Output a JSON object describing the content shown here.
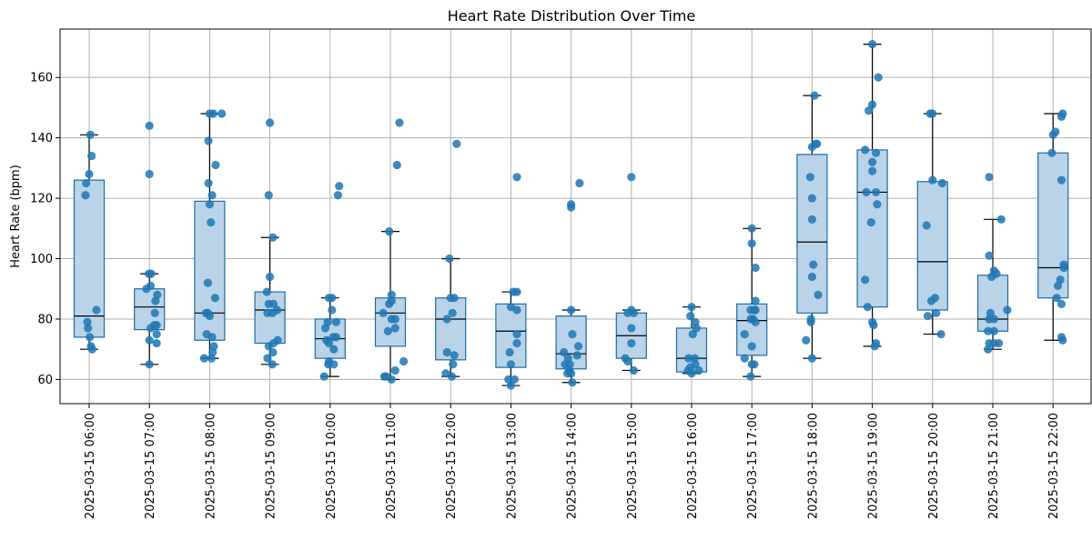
{
  "chart_data": {
    "type": "box",
    "title": "Heart Rate Distribution Over Time",
    "xlabel": "",
    "ylabel": "Heart Rate (bpm)",
    "ylim": [
      52,
      176
    ],
    "yticks": [
      60,
      80,
      100,
      120,
      140,
      160
    ],
    "grid": true,
    "colors": {
      "box_fill": "#b9d4e8",
      "box_edge": "#1f6aa5",
      "whisker": "#000000",
      "median": "#000000",
      "point": "#1f77b4",
      "grid": "#b0b0b0"
    },
    "categories": [
      "2025-03-15 06:00",
      "2025-03-15 07:00",
      "2025-03-15 08:00",
      "2025-03-15 09:00",
      "2025-03-15 10:00",
      "2025-03-15 11:00",
      "2025-03-15 12:00",
      "2025-03-15 13:00",
      "2025-03-15 14:00",
      "2025-03-15 15:00",
      "2025-03-15 16:00",
      "2025-03-15 17:00",
      "2025-03-15 18:00",
      "2025-03-15 19:00",
      "2025-03-15 20:00",
      "2025-03-15 21:00",
      "2025-03-15 22:00"
    ],
    "boxes": [
      {
        "whislo": 70,
        "q1": 74,
        "med": 81,
        "q3": 126,
        "whishi": 141
      },
      {
        "whislo": 65,
        "q1": 76.5,
        "med": 84,
        "q3": 90,
        "whishi": 95
      },
      {
        "whislo": 67,
        "q1": 73,
        "med": 82,
        "q3": 119,
        "whishi": 148
      },
      {
        "whislo": 65,
        "q1": 72,
        "med": 83,
        "q3": 89,
        "whishi": 107
      },
      {
        "whislo": 61,
        "q1": 67,
        "med": 73.5,
        "q3": 80,
        "whishi": 87
      },
      {
        "whislo": 60,
        "q1": 71,
        "med": 82,
        "q3": 87,
        "whishi": 109
      },
      {
        "whislo": 61,
        "q1": 66.5,
        "med": 80,
        "q3": 87,
        "whishi": 100
      },
      {
        "whislo": 58,
        "q1": 64,
        "med": 76,
        "q3": 85,
        "whishi": 89
      },
      {
        "whislo": 59,
        "q1": 63.5,
        "med": 68.5,
        "q3": 81,
        "whishi": 83
      },
      {
        "whislo": 63,
        "q1": 67,
        "med": 74.5,
        "q3": 82,
        "whishi": 83
      },
      {
        "whislo": 62,
        "q1": 62.5,
        "med": 67,
        "q3": 77,
        "whishi": 84
      },
      {
        "whislo": 61,
        "q1": 68,
        "med": 79.5,
        "q3": 85,
        "whishi": 110
      },
      {
        "whislo": 67,
        "q1": 82,
        "med": 105.5,
        "q3": 134.5,
        "whishi": 154
      },
      {
        "whislo": 71,
        "q1": 84,
        "med": 122,
        "q3": 136,
        "whishi": 171
      },
      {
        "whislo": 75,
        "q1": 83,
        "med": 99,
        "q3": 125.5,
        "whishi": 148
      },
      {
        "whislo": 70,
        "q1": 76,
        "med": 80,
        "q3": 94.5,
        "whishi": 113
      },
      {
        "whislo": 73,
        "q1": 87,
        "med": 97,
        "q3": 135,
        "whishi": 148
      }
    ],
    "points": [
      [
        [
          -0.06,
          121
        ],
        [
          -0.05,
          125
        ],
        [
          0.0,
          128
        ],
        [
          0.02,
          141
        ],
        [
          0.04,
          134
        ],
        [
          -0.03,
          79
        ],
        [
          -0.02,
          77
        ],
        [
          0.01,
          74
        ],
        [
          0.03,
          71
        ],
        [
          0.05,
          70
        ],
        [
          0.12,
          83
        ]
      ],
      [
        [
          0.0,
          144
        ],
        [
          0.0,
          128
        ],
        [
          -0.01,
          95
        ],
        [
          0.03,
          95
        ],
        [
          0.02,
          91
        ],
        [
          -0.05,
          90
        ],
        [
          0.13,
          88
        ],
        [
          0.1,
          86
        ],
        [
          0.09,
          82
        ],
        [
          0.08,
          78
        ],
        [
          0.12,
          78
        ],
        [
          0.02,
          77
        ],
        [
          0.12,
          75
        ],
        [
          0.0,
          73
        ],
        [
          0.12,
          72
        ],
        [
          0.0,
          65
        ]
      ],
      [
        [
          0.0,
          148
        ],
        [
          0.06,
          148
        ],
        [
          -0.02,
          139
        ],
        [
          -0.02,
          125
        ],
        [
          0.1,
          131
        ],
        [
          0.04,
          121
        ],
        [
          0.0,
          118
        ],
        [
          0.02,
          112
        ],
        [
          -0.03,
          92
        ],
        [
          0.09,
          87
        ],
        [
          -0.06,
          82
        ],
        [
          -0.03,
          82
        ],
        [
          0.0,
          81
        ],
        [
          -0.05,
          75
        ],
        [
          0.04,
          74
        ],
        [
          0.07,
          71
        ],
        [
          0.05,
          69
        ],
        [
          -0.09,
          67
        ],
        [
          0.03,
          67
        ],
        [
          0.2,
          148
        ]
      ],
      [
        [
          0.0,
          145
        ],
        [
          -0.02,
          121
        ],
        [
          0.05,
          107
        ],
        [
          0.0,
          94
        ],
        [
          -0.05,
          89
        ],
        [
          -0.02,
          85
        ],
        [
          0.06,
          85
        ],
        [
          -0.04,
          82
        ],
        [
          0.04,
          82
        ],
        [
          0.12,
          83
        ],
        [
          0.06,
          72
        ],
        [
          0.13,
          73
        ],
        [
          -0.02,
          71
        ],
        [
          0.05,
          69
        ],
        [
          -0.04,
          67
        ],
        [
          0.04,
          65
        ]
      ],
      [
        [
          0.15,
          124
        ],
        [
          0.13,
          121
        ],
        [
          -0.02,
          87
        ],
        [
          0.03,
          87
        ],
        [
          0.03,
          83
        ],
        [
          -0.04,
          79
        ],
        [
          0.1,
          79
        ],
        [
          -0.08,
          77
        ],
        [
          0.05,
          74
        ],
        [
          0.1,
          74
        ],
        [
          -0.06,
          73
        ],
        [
          -0.02,
          72
        ],
        [
          0.06,
          70
        ],
        [
          -0.02,
          66
        ],
        [
          0.06,
          65
        ],
        [
          -0.03,
          65
        ],
        [
          -0.1,
          61
        ]
      ],
      [
        [
          0.15,
          145
        ],
        [
          0.11,
          131
        ],
        [
          -0.02,
          109
        ],
        [
          0.02,
          88
        ],
        [
          0.02,
          86
        ],
        [
          -0.02,
          85
        ],
        [
          0.08,
          80
        ],
        [
          0.02,
          80
        ],
        [
          -0.04,
          76
        ],
        [
          0.08,
          77
        ],
        [
          -0.12,
          82
        ],
        [
          0.22,
          66
        ],
        [
          0.08,
          63
        ],
        [
          -0.07,
          61
        ],
        [
          0.02,
          60
        ],
        [
          -0.1,
          61
        ]
      ],
      [
        [
          0.1,
          138
        ],
        [
          -0.02,
          100
        ],
        [
          0.0,
          87
        ],
        [
          0.06,
          87
        ],
        [
          0.03,
          82
        ],
        [
          -0.06,
          80
        ],
        [
          0.06,
          68
        ],
        [
          -0.06,
          69
        ],
        [
          0.04,
          65
        ],
        [
          -0.08,
          62
        ],
        [
          0.02,
          61
        ]
      ],
      [
        [
          0.1,
          127
        ],
        [
          0.04,
          89
        ],
        [
          0.1,
          89
        ],
        [
          0.0,
          84
        ],
        [
          0.1,
          83
        ],
        [
          0.1,
          75
        ],
        [
          0.1,
          72
        ],
        [
          -0.02,
          69
        ],
        [
          0.0,
          65
        ],
        [
          -0.04,
          60
        ],
        [
          0.06,
          60
        ],
        [
          0.0,
          58
        ]
      ],
      [
        [
          0.0,
          118
        ],
        [
          0.0,
          117
        ],
        [
          0.14,
          125
        ],
        [
          0.0,
          83
        ],
        [
          0.02,
          75
        ],
        [
          0.12,
          71
        ],
        [
          -0.12,
          69
        ],
        [
          -0.05,
          67
        ],
        [
          0.1,
          68
        ],
        [
          -0.1,
          65
        ],
        [
          -0.02,
          65
        ],
        [
          -0.03,
          63
        ],
        [
          -0.06,
          62
        ],
        [
          0.0,
          62
        ],
        [
          0.02,
          59
        ]
      ],
      [
        [
          0.0,
          127
        ],
        [
          -0.06,
          82
        ],
        [
          0.0,
          83
        ],
        [
          0.04,
          82
        ],
        [
          0.0,
          77
        ],
        [
          0.0,
          72
        ],
        [
          -0.1,
          67
        ],
        [
          -0.06,
          66
        ],
        [
          0.04,
          63
        ]
      ],
      [
        [
          0.0,
          84
        ],
        [
          -0.02,
          81
        ],
        [
          0.06,
          79
        ],
        [
          0.08,
          77
        ],
        [
          0.02,
          75
        ],
        [
          -0.05,
          67
        ],
        [
          0.05,
          67
        ],
        [
          -0.02,
          64
        ],
        [
          0.06,
          65
        ],
        [
          0.12,
          63
        ],
        [
          -0.06,
          63
        ],
        [
          0.0,
          62
        ]
      ],
      [
        [
          0.0,
          110
        ],
        [
          0.0,
          105
        ],
        [
          0.06,
          97
        ],
        [
          0.06,
          86
        ],
        [
          -0.02,
          83
        ],
        [
          0.04,
          83
        ],
        [
          0.06,
          83
        ],
        [
          0.02,
          80
        ],
        [
          0.06,
          79
        ],
        [
          -0.02,
          80
        ],
        [
          -0.12,
          75
        ],
        [
          0.0,
          71
        ],
        [
          -0.12,
          67
        ],
        [
          0.04,
          65
        ],
        [
          0.0,
          65
        ],
        [
          -0.02,
          61
        ]
      ],
      [
        [
          0.04,
          154
        ],
        [
          0.08,
          138
        ],
        [
          0.06,
          138
        ],
        [
          0.0,
          137
        ],
        [
          -0.03,
          127
        ],
        [
          0.0,
          120
        ],
        [
          0.0,
          113
        ],
        [
          0.02,
          98
        ],
        [
          0.0,
          94
        ],
        [
          0.1,
          88
        ],
        [
          -0.02,
          80
        ],
        [
          -0.02,
          79
        ],
        [
          -0.1,
          73
        ],
        [
          0.0,
          67
        ]
      ],
      [
        [
          0.0,
          171
        ],
        [
          0.0,
          151
        ],
        [
          -0.06,
          149
        ],
        [
          0.1,
          160
        ],
        [
          -0.12,
          136
        ],
        [
          0.06,
          135
        ],
        [
          0.0,
          132
        ],
        [
          0.0,
          129
        ],
        [
          0.08,
          118
        ],
        [
          -0.1,
          122
        ],
        [
          -0.02,
          112
        ],
        [
          0.06,
          122
        ],
        [
          -0.12,
          93
        ],
        [
          -0.08,
          84
        ],
        [
          0.0,
          79
        ],
        [
          0.02,
          78
        ],
        [
          0.06,
          72
        ],
        [
          0.04,
          71
        ]
      ],
      [
        [
          -0.04,
          148
        ],
        [
          0.0,
          148
        ],
        [
          0.0,
          126
        ],
        [
          0.16,
          125
        ],
        [
          -0.1,
          111
        ],
        [
          0.04,
          87
        ],
        [
          -0.02,
          86
        ],
        [
          -0.08,
          81
        ],
        [
          0.06,
          82
        ],
        [
          0.14,
          75
        ]
      ],
      [
        [
          -0.06,
          127
        ],
        [
          0.14,
          113
        ],
        [
          -0.06,
          101
        ],
        [
          -0.02,
          94
        ],
        [
          0.02,
          96
        ],
        [
          0.06,
          95
        ],
        [
          0.24,
          83
        ],
        [
          -0.04,
          82
        ],
        [
          -0.06,
          80
        ],
        [
          0.02,
          80
        ],
        [
          -0.08,
          76
        ],
        [
          0.02,
          76
        ],
        [
          -0.06,
          72
        ],
        [
          -0.08,
          70
        ],
        [
          0.02,
          72
        ],
        [
          0.1,
          72
        ]
      ],
      [
        [
          0.16,
          148
        ],
        [
          0.14,
          147
        ],
        [
          0.04,
          142
        ],
        [
          0.0,
          141
        ],
        [
          -0.02,
          135
        ],
        [
          0.14,
          126
        ],
        [
          0.18,
          98
        ],
        [
          0.18,
          97
        ],
        [
          0.12,
          93
        ],
        [
          0.08,
          91
        ],
        [
          0.06,
          87
        ],
        [
          0.14,
          85
        ],
        [
          0.14,
          74
        ],
        [
          0.16,
          73
        ]
      ]
    ]
  }
}
